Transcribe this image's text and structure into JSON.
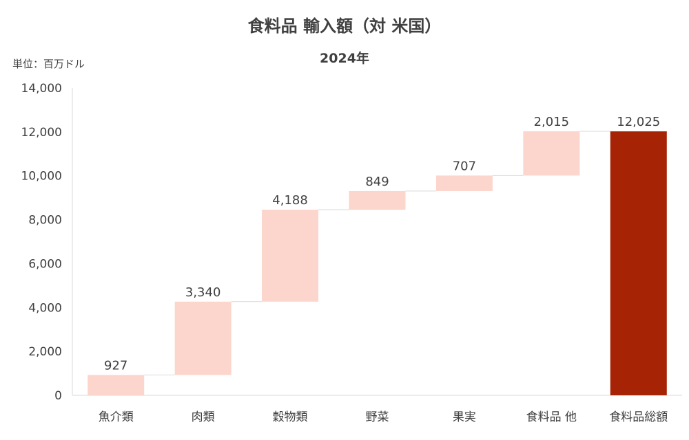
{
  "chart_data": {
    "type": "bar",
    "subtype": "waterfall",
    "title": "食料品 輸入額（対 米国）",
    "subtitle": "2024年",
    "unit_label": "単位：百万ドル",
    "categories": [
      "魚介類",
      "肉類",
      "穀物類",
      "野菜",
      "果実",
      "食料品 他",
      "食料品総額"
    ],
    "values": [
      927,
      3340,
      4188,
      849,
      707,
      2015,
      12025
    ],
    "value_labels": [
      "927",
      "3,340",
      "4,188",
      "849",
      "707",
      "2,015",
      "12,025"
    ],
    "total_index": 6,
    "ylim": [
      0,
      14000
    ],
    "yticks": [
      0,
      2000,
      4000,
      6000,
      8000,
      10000,
      12000,
      14000
    ],
    "ytick_labels": [
      "0",
      "2,000",
      "4,000",
      "6,000",
      "8,000",
      "10,000",
      "12,000",
      "14,000"
    ],
    "grid": false,
    "legend": "none",
    "colors": {
      "increment": "#FCD5CC",
      "total": "#A62306",
      "connector": "#D9D9D9",
      "axis": "#D9D9D9"
    }
  }
}
